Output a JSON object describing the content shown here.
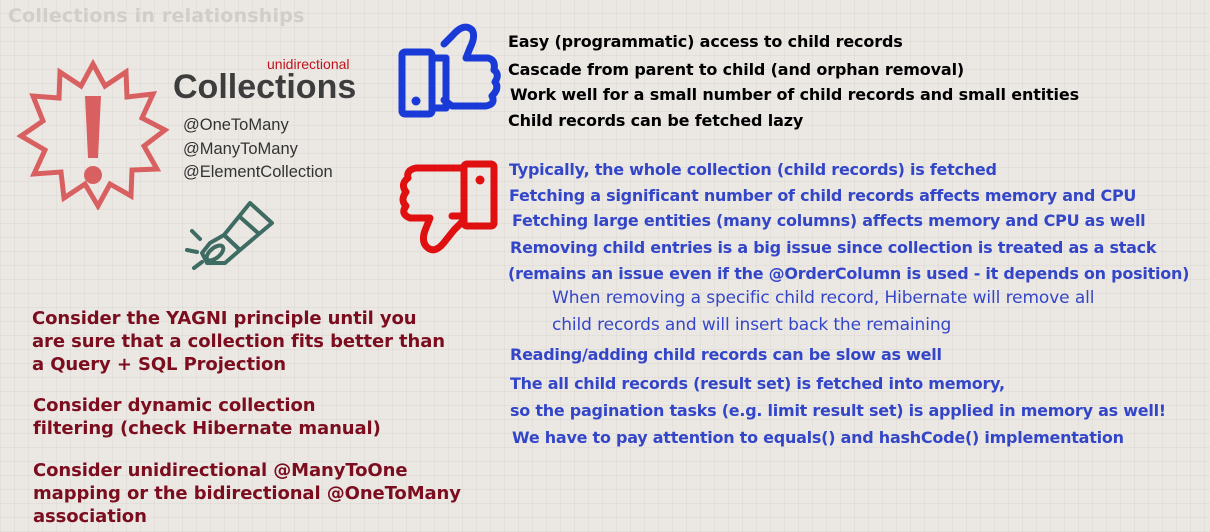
{
  "title": "Collections in relationships",
  "collections": {
    "tag": "unidirectional",
    "heading": "Collections",
    "annotations": [
      "@OneToMany",
      "@ManyToMany",
      "@ElementCollection"
    ]
  },
  "icons": {
    "warning": "warning-burst-icon",
    "pros": "thumbs-up-icon",
    "cons": "thumbs-down-icon",
    "flashlight": "flashlight-icon"
  },
  "colors": {
    "pros_icon": "#1a3ad8",
    "cons_icon": "#e01010",
    "cons_text": "#3446c8",
    "advice_text": "#7b0d1e",
    "warning_icon": "#d96060",
    "flashlight_icon": "#3e6b62"
  },
  "pros": [
    "Easy (programmatic) access to child records",
    "Cascade from parent to child (and orphan removal)",
    "Work well for a small number of child records and small entities",
    "Child records can be fetched lazy"
  ],
  "cons": [
    "Typically, the whole collection (child records) is fetched",
    "Fetching a significant number of child records affects memory and CPU",
    "Fetching large entities (many columns) affects memory and CPU as well",
    "Removing child entries is a big issue since collection is treated as a stack",
    "(remains an issue even if the @OrderColumn is used - it depends on position)"
  ],
  "cons_note": [
    "When removing a specific child record, Hibernate will remove all",
    "child records and will insert back the remaining"
  ],
  "cons_more": [
    "Reading/adding child records can be slow as well",
    "The all child records (result set) is fetched into memory,",
    "so the pagination tasks (e.g. limit result set) is applied in memory as well!",
    "We have to pay attention to equals() and hashCode() implementation"
  ],
  "advice": [
    [
      "Consider the YAGNI principle until you",
      "are sure that a collection fits better than",
      "a Query + SQL Projection"
    ],
    [
      "Consider dynamic collection",
      "filtering (check Hibernate manual)"
    ],
    [
      "Consider unidirectional @ManyToOne",
      "mapping or the bidirectional @OneToMany",
      "association"
    ]
  ]
}
